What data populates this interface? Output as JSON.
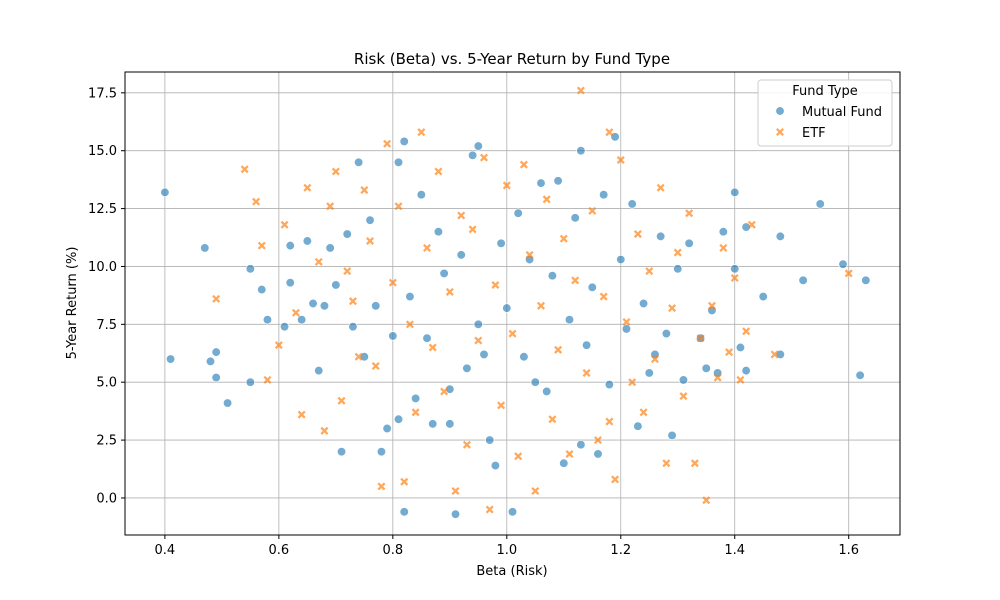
{
  "chart_data": {
    "type": "scatter",
    "title": "Risk (Beta) vs. 5-Year Return by Fund Type",
    "xlabel": "Beta (Risk)",
    "ylabel": "5-Year Return (%)",
    "xlim": [
      0.33,
      1.69
    ],
    "ylim": [
      -1.6,
      18.4
    ],
    "xticks": [
      0.4,
      0.6,
      0.8,
      1.0,
      1.2,
      1.4,
      1.6
    ],
    "xtick_labels": [
      "0.4",
      "0.6",
      "0.8",
      "1.0",
      "1.2",
      "1.4",
      "1.6"
    ],
    "yticks": [
      0.0,
      2.5,
      5.0,
      7.5,
      10.0,
      12.5,
      15.0,
      17.5
    ],
    "ytick_labels": [
      "0.0",
      "2.5",
      "5.0",
      "7.5",
      "10.0",
      "12.5",
      "15.0",
      "17.5"
    ],
    "grid": true,
    "legend": {
      "title": "Fund Type",
      "placement": "top-right"
    },
    "series": [
      {
        "name": "Mutual Fund",
        "marker": "circle",
        "color": "#1f77b4",
        "points": [
          [
            0.4,
            13.2
          ],
          [
            0.41,
            6.0
          ],
          [
            0.47,
            10.8
          ],
          [
            0.48,
            5.9
          ],
          [
            0.49,
            6.3
          ],
          [
            0.49,
            5.2
          ],
          [
            0.51,
            4.1
          ],
          [
            0.55,
            9.9
          ],
          [
            0.55,
            5.0
          ],
          [
            0.57,
            9.0
          ],
          [
            0.58,
            7.7
          ],
          [
            0.61,
            7.4
          ],
          [
            0.62,
            9.3
          ],
          [
            0.62,
            10.9
          ],
          [
            0.64,
            7.7
          ],
          [
            0.65,
            11.1
          ],
          [
            0.66,
            8.4
          ],
          [
            0.67,
            5.5
          ],
          [
            0.68,
            8.3
          ],
          [
            0.69,
            10.8
          ],
          [
            0.7,
            9.2
          ],
          [
            0.71,
            2.0
          ],
          [
            0.72,
            11.4
          ],
          [
            0.73,
            7.4
          ],
          [
            0.74,
            14.5
          ],
          [
            0.75,
            6.1
          ],
          [
            0.76,
            12.0
          ],
          [
            0.77,
            8.3
          ],
          [
            0.78,
            2.0
          ],
          [
            0.79,
            3.0
          ],
          [
            0.8,
            7.0
          ],
          [
            0.81,
            14.5
          ],
          [
            0.81,
            3.4
          ],
          [
            0.82,
            15.4
          ],
          [
            0.82,
            -0.6
          ],
          [
            0.83,
            8.7
          ],
          [
            0.84,
            4.3
          ],
          [
            0.85,
            13.1
          ],
          [
            0.86,
            6.9
          ],
          [
            0.87,
            3.2
          ],
          [
            0.88,
            11.5
          ],
          [
            0.89,
            9.7
          ],
          [
            0.9,
            3.2
          ],
          [
            0.9,
            4.7
          ],
          [
            0.91,
            -0.7
          ],
          [
            0.92,
            10.5
          ],
          [
            0.93,
            5.6
          ],
          [
            0.94,
            14.8
          ],
          [
            0.95,
            7.5
          ],
          [
            0.95,
            15.2
          ],
          [
            0.96,
            6.2
          ],
          [
            0.97,
            2.5
          ],
          [
            0.98,
            1.4
          ],
          [
            0.99,
            11.0
          ],
          [
            1.0,
            8.2
          ],
          [
            1.01,
            -0.6
          ],
          [
            1.02,
            12.3
          ],
          [
            1.03,
            6.1
          ],
          [
            1.04,
            10.3
          ],
          [
            1.05,
            5.0
          ],
          [
            1.06,
            13.6
          ],
          [
            1.07,
            4.6
          ],
          [
            1.08,
            9.6
          ],
          [
            1.09,
            13.7
          ],
          [
            1.1,
            1.5
          ],
          [
            1.11,
            7.7
          ],
          [
            1.12,
            12.1
          ],
          [
            1.13,
            2.3
          ],
          [
            1.13,
            15.0
          ],
          [
            1.14,
            6.6
          ],
          [
            1.15,
            9.1
          ],
          [
            1.16,
            1.9
          ],
          [
            1.17,
            13.1
          ],
          [
            1.18,
            4.9
          ],
          [
            1.19,
            15.6
          ],
          [
            1.2,
            10.3
          ],
          [
            1.21,
            7.3
          ],
          [
            1.22,
            12.7
          ],
          [
            1.23,
            3.1
          ],
          [
            1.24,
            8.4
          ],
          [
            1.25,
            5.4
          ],
          [
            1.26,
            6.2
          ],
          [
            1.27,
            11.3
          ],
          [
            1.28,
            7.1
          ],
          [
            1.29,
            2.7
          ],
          [
            1.3,
            9.9
          ],
          [
            1.31,
            5.1
          ],
          [
            1.32,
            11.0
          ],
          [
            1.34,
            6.9
          ],
          [
            1.35,
            5.6
          ],
          [
            1.36,
            8.1
          ],
          [
            1.37,
            5.4
          ],
          [
            1.38,
            11.5
          ],
          [
            1.4,
            13.2
          ],
          [
            1.4,
            9.9
          ],
          [
            1.41,
            6.5
          ],
          [
            1.42,
            11.7
          ],
          [
            1.42,
            5.5
          ],
          [
            1.45,
            8.7
          ],
          [
            1.48,
            11.3
          ],
          [
            1.48,
            6.2
          ],
          [
            1.52,
            9.4
          ],
          [
            1.55,
            12.7
          ],
          [
            1.59,
            10.1
          ],
          [
            1.62,
            5.3
          ],
          [
            1.63,
            9.4
          ]
        ]
      },
      {
        "name": "ETF",
        "marker": "x",
        "color": "#ff7f0e",
        "points": [
          [
            0.49,
            8.6
          ],
          [
            0.54,
            14.2
          ],
          [
            0.56,
            12.8
          ],
          [
            0.57,
            10.9
          ],
          [
            0.58,
            5.1
          ],
          [
            0.6,
            6.6
          ],
          [
            0.61,
            11.8
          ],
          [
            0.63,
            8.0
          ],
          [
            0.64,
            3.6
          ],
          [
            0.65,
            13.4
          ],
          [
            0.67,
            10.2
          ],
          [
            0.68,
            2.9
          ],
          [
            0.69,
            12.6
          ],
          [
            0.7,
            14.1
          ],
          [
            0.71,
            4.2
          ],
          [
            0.72,
            9.8
          ],
          [
            0.73,
            8.5
          ],
          [
            0.74,
            6.1
          ],
          [
            0.75,
            13.3
          ],
          [
            0.76,
            11.1
          ],
          [
            0.77,
            5.7
          ],
          [
            0.78,
            0.5
          ],
          [
            0.79,
            15.3
          ],
          [
            0.8,
            9.3
          ],
          [
            0.81,
            12.6
          ],
          [
            0.82,
            0.7
          ],
          [
            0.83,
            7.5
          ],
          [
            0.84,
            3.7
          ],
          [
            0.85,
            15.8
          ],
          [
            0.86,
            10.8
          ],
          [
            0.87,
            6.5
          ],
          [
            0.88,
            14.1
          ],
          [
            0.89,
            4.6
          ],
          [
            0.9,
            8.9
          ],
          [
            0.91,
            0.3
          ],
          [
            0.92,
            12.2
          ],
          [
            0.93,
            2.3
          ],
          [
            0.94,
            11.6
          ],
          [
            0.95,
            6.8
          ],
          [
            0.96,
            14.7
          ],
          [
            0.97,
            -0.5
          ],
          [
            0.98,
            9.2
          ],
          [
            0.99,
            4.0
          ],
          [
            1.0,
            13.5
          ],
          [
            1.01,
            7.1
          ],
          [
            1.02,
            1.8
          ],
          [
            1.03,
            14.4
          ],
          [
            1.04,
            10.5
          ],
          [
            1.05,
            0.3
          ],
          [
            1.06,
            8.3
          ],
          [
            1.07,
            12.9
          ],
          [
            1.08,
            3.4
          ],
          [
            1.09,
            6.4
          ],
          [
            1.1,
            11.2
          ],
          [
            1.11,
            1.9
          ],
          [
            1.12,
            9.4
          ],
          [
            1.13,
            17.6
          ],
          [
            1.14,
            5.4
          ],
          [
            1.15,
            12.4
          ],
          [
            1.16,
            2.5
          ],
          [
            1.17,
            8.7
          ],
          [
            1.18,
            15.8
          ],
          [
            1.18,
            3.3
          ],
          [
            1.19,
            0.8
          ],
          [
            1.2,
            14.6
          ],
          [
            1.21,
            7.6
          ],
          [
            1.22,
            5.0
          ],
          [
            1.23,
            11.4
          ],
          [
            1.24,
            3.7
          ],
          [
            1.25,
            9.8
          ],
          [
            1.26,
            6.0
          ],
          [
            1.27,
            13.4
          ],
          [
            1.28,
            1.5
          ],
          [
            1.29,
            8.2
          ],
          [
            1.3,
            10.6
          ],
          [
            1.31,
            4.4
          ],
          [
            1.32,
            12.3
          ],
          [
            1.33,
            1.5
          ],
          [
            1.34,
            6.9
          ],
          [
            1.35,
            -0.1
          ],
          [
            1.36,
            8.3
          ],
          [
            1.37,
            5.2
          ],
          [
            1.38,
            10.8
          ],
          [
            1.39,
            6.3
          ],
          [
            1.4,
            9.5
          ],
          [
            1.41,
            5.1
          ],
          [
            1.42,
            7.2
          ],
          [
            1.43,
            11.8
          ],
          [
            1.47,
            6.2
          ],
          [
            1.6,
            9.7
          ]
        ]
      }
    ]
  }
}
